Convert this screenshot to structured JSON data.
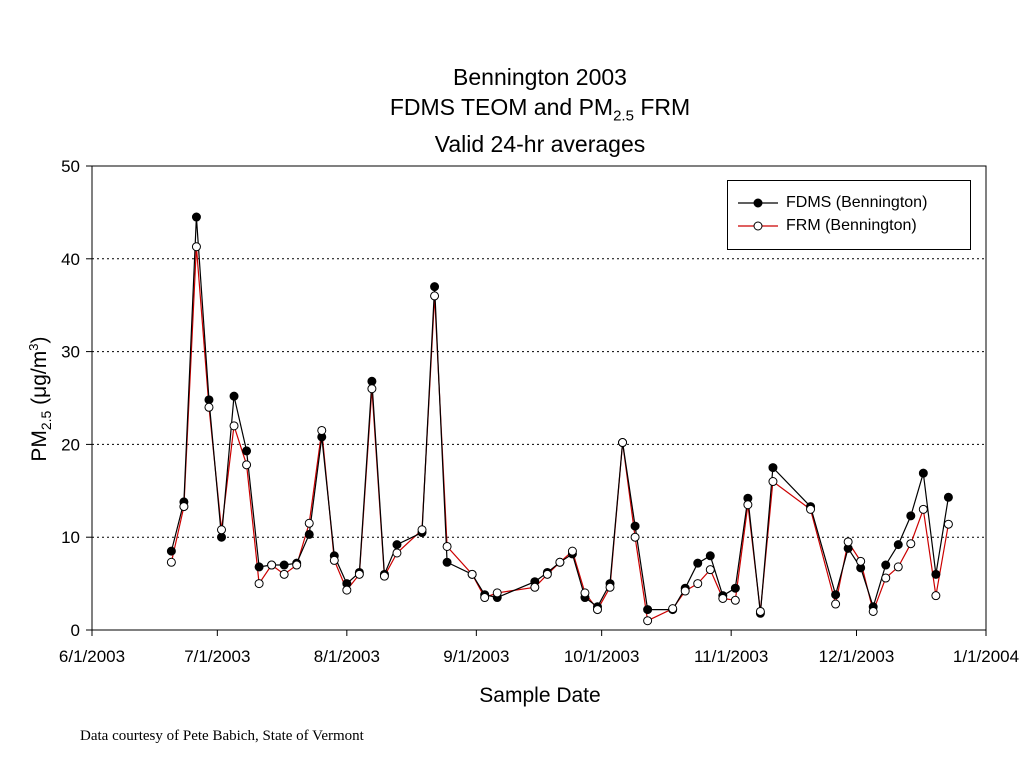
{
  "chart_data": {
    "type": "line",
    "title_lines": [
      "Bennington 2003",
      "FDMS TEOM and PM",
      "Valid 24-hr averages"
    ],
    "title_sub": "2.5",
    "title_suffix": "FRM",
    "xlabel": "Sample Date",
    "ylabel_main": "PM",
    "ylabel_sub": "2.5",
    "ylabel_unit": "(μg/m",
    "ylabel_sup": "3",
    "ylabel_end": ")",
    "ylim": [
      0,
      50
    ],
    "yticks": [
      "0",
      "10",
      "20",
      "30",
      "40",
      "50"
    ],
    "xticks": [
      "6/1/2003",
      "7/1/2003",
      "8/1/2003",
      "9/1/2003",
      "10/1/2003",
      "11/1/2003",
      "12/1/2003",
      "1/1/2004"
    ],
    "xlim": [
      "2003-06-01",
      "2004-01-01"
    ],
    "grid": "horizontal dotted",
    "legend_position": "top-right",
    "series": [
      {
        "name": "FDMS (Bennington)",
        "color": "#000000",
        "marker": "filled-circle",
        "points": [
          [
            "2003-06-20",
            8.5
          ],
          [
            "2003-06-23",
            13.8
          ],
          [
            "2003-06-26",
            44.5
          ],
          [
            "2003-06-29",
            24.8
          ],
          [
            "2003-07-02",
            10.0
          ],
          [
            "2003-07-05",
            25.2
          ],
          [
            "2003-07-08",
            19.3
          ],
          [
            "2003-07-11",
            6.8
          ],
          [
            "2003-07-14",
            7.0
          ],
          [
            "2003-07-17",
            7.0
          ],
          [
            "2003-07-20",
            7.2
          ],
          [
            "2003-07-23",
            10.3
          ],
          [
            "2003-07-26",
            20.8
          ],
          [
            "2003-07-29",
            8.0
          ],
          [
            "2003-08-01",
            5.0
          ],
          [
            "2003-08-04",
            6.2
          ],
          [
            "2003-08-07",
            26.8
          ],
          [
            "2003-08-10",
            6.0
          ],
          [
            "2003-08-13",
            9.2
          ],
          [
            "2003-08-19",
            10.5
          ],
          [
            "2003-08-22",
            37.0
          ],
          [
            "2003-08-25",
            7.3
          ],
          [
            "2003-08-31",
            6.0
          ],
          [
            "2003-09-03",
            3.8
          ],
          [
            "2003-09-06",
            3.5
          ],
          [
            "2003-09-15",
            5.2
          ],
          [
            "2003-09-18",
            6.2
          ],
          [
            "2003-09-21",
            7.3
          ],
          [
            "2003-09-24",
            8.2
          ],
          [
            "2003-09-27",
            3.5
          ],
          [
            "2003-09-30",
            2.5
          ],
          [
            "2003-10-03",
            5.0
          ],
          [
            "2003-10-06",
            20.2
          ],
          [
            "2003-10-09",
            11.2
          ],
          [
            "2003-10-12",
            2.2
          ],
          [
            "2003-10-18",
            2.2
          ],
          [
            "2003-10-21",
            4.5
          ],
          [
            "2003-10-24",
            7.2
          ],
          [
            "2003-10-27",
            8.0
          ],
          [
            "2003-10-30",
            3.7
          ],
          [
            "2003-11-02",
            4.5
          ],
          [
            "2003-11-05",
            14.2
          ],
          [
            "2003-11-08",
            1.8
          ],
          [
            "2003-11-11",
            17.5
          ],
          [
            "2003-11-20",
            13.3
          ],
          [
            "2003-11-26",
            3.8
          ],
          [
            "2003-11-29",
            8.8
          ],
          [
            "2003-12-02",
            6.7
          ],
          [
            "2003-12-05",
            2.5
          ],
          [
            "2003-12-08",
            7.0
          ],
          [
            "2003-12-11",
            9.2
          ],
          [
            "2003-12-14",
            12.3
          ],
          [
            "2003-12-17",
            16.9
          ],
          [
            "2003-12-20",
            6.0
          ],
          [
            "2003-12-23",
            14.3
          ]
        ]
      },
      {
        "name": "FRM (Bennington)",
        "color": "#cc0000",
        "marker": "open-circle",
        "points": [
          [
            "2003-06-20",
            7.3
          ],
          [
            "2003-06-23",
            13.3
          ],
          [
            "2003-06-26",
            41.3
          ],
          [
            "2003-06-29",
            24.0
          ],
          [
            "2003-07-02",
            10.8
          ],
          [
            "2003-07-05",
            22.0
          ],
          [
            "2003-07-08",
            17.8
          ],
          [
            "2003-07-11",
            5.0
          ],
          [
            "2003-07-14",
            7.0
          ],
          [
            "2003-07-17",
            6.0
          ],
          [
            "2003-07-20",
            7.0
          ],
          [
            "2003-07-23",
            11.5
          ],
          [
            "2003-07-26",
            21.5
          ],
          [
            "2003-07-29",
            7.5
          ],
          [
            "2003-08-01",
            4.3
          ],
          [
            "2003-08-04",
            6.0
          ],
          [
            "2003-08-07",
            26.0
          ],
          [
            "2003-08-10",
            5.8
          ],
          [
            "2003-08-13",
            8.3
          ],
          [
            "2003-08-19",
            10.8
          ],
          [
            "2003-08-22",
            36.0
          ],
          [
            "2003-08-25",
            9.0
          ],
          [
            "2003-08-31",
            6.0
          ],
          [
            "2003-09-03",
            3.5
          ],
          [
            "2003-09-06",
            4.0
          ],
          [
            "2003-09-15",
            4.6
          ],
          [
            "2003-09-18",
            6.0
          ],
          [
            "2003-09-21",
            7.3
          ],
          [
            "2003-09-24",
            8.5
          ],
          [
            "2003-09-27",
            4.0
          ],
          [
            "2003-09-30",
            2.2
          ],
          [
            "2003-10-03",
            4.6
          ],
          [
            "2003-10-06",
            20.2
          ],
          [
            "2003-10-09",
            10.0
          ],
          [
            "2003-10-12",
            1.0
          ],
          [
            "2003-10-18",
            2.3
          ],
          [
            "2003-10-21",
            4.2
          ],
          [
            "2003-10-24",
            5.0
          ],
          [
            "2003-10-27",
            6.5
          ],
          [
            "2003-10-30",
            3.4
          ],
          [
            "2003-11-02",
            3.2
          ],
          [
            "2003-11-05",
            13.5
          ],
          [
            "2003-11-08",
            2.0
          ],
          [
            "2003-11-11",
            16.0
          ],
          [
            "2003-11-20",
            13.0
          ],
          [
            "2003-11-26",
            2.8
          ],
          [
            "2003-11-29",
            9.5
          ],
          [
            "2003-12-02",
            7.4
          ],
          [
            "2003-12-05",
            2.0
          ],
          [
            "2003-12-08",
            5.6
          ],
          [
            "2003-12-11",
            6.8
          ],
          [
            "2003-12-14",
            9.3
          ],
          [
            "2003-12-17",
            13.0
          ],
          [
            "2003-12-20",
            3.7
          ],
          [
            "2003-12-23",
            11.4
          ]
        ]
      }
    ]
  },
  "footnote": "Data courtesy of Pete Babich, State of Vermont"
}
